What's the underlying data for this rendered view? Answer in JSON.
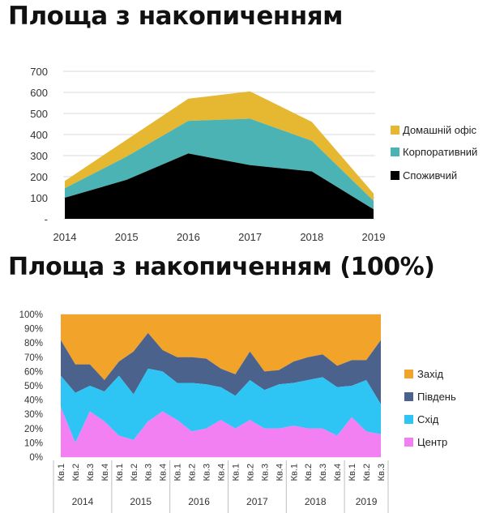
{
  "chart_data": [
    {
      "type": "area",
      "stacked": true,
      "title": "Площа з накопиченням",
      "x": [
        "2014",
        "2015",
        "2016",
        "2017",
        "2018",
        "2019"
      ],
      "series": [
        {
          "name": "Споживчий",
          "values": [
            100,
            185,
            310,
            255,
            225,
            45
          ],
          "color": "#000000"
        },
        {
          "name": "Корпоративний",
          "values": [
            45,
            110,
            155,
            220,
            145,
            40
          ],
          "color": "#4bb3b3"
        },
        {
          "name": "Домашній офіс",
          "values": [
            35,
            80,
            105,
            130,
            90,
            35
          ],
          "color": "#e6b832"
        }
      ],
      "y_ticks": [
        "-",
        "100",
        "200",
        "300",
        "400",
        "500",
        "600",
        "700"
      ],
      "ylim": [
        0,
        700
      ],
      "grid": true,
      "legend": "right"
    },
    {
      "type": "area",
      "stacked": true,
      "normalized": true,
      "title": "Площа з накопиченням (100%)",
      "x": [
        "Кв.1",
        "Кв.2",
        "Кв.3",
        "Кв.4",
        "Кв.1",
        "Кв.2",
        "Кв.3",
        "Кв.4",
        "Кв.1",
        "Кв.2",
        "Кв.3",
        "Кв.4",
        "Кв.1",
        "Кв.2",
        "Кв.3",
        "Кв.4",
        "Кв.1",
        "Кв.2",
        "Кв.3",
        "Кв.4",
        "Кв.1",
        "Кв.2",
        "Кв.3"
      ],
      "years": [
        {
          "label": "2014",
          "quarters": 4
        },
        {
          "label": "2015",
          "quarters": 4
        },
        {
          "label": "2016",
          "quarters": 4
        },
        {
          "label": "2017",
          "quarters": 4
        },
        {
          "label": "2018",
          "quarters": 4
        },
        {
          "label": "2019",
          "quarters": 3
        }
      ],
      "series": [
        {
          "name": "Центр",
          "values": [
            35,
            10,
            32,
            25,
            15,
            12,
            25,
            32,
            26,
            18,
            20,
            26,
            20,
            26,
            20,
            20,
            22,
            20,
            20,
            15,
            28,
            18,
            16
          ],
          "color": "#f280f2"
        },
        {
          "name": "Схід",
          "values": [
            22,
            35,
            18,
            21,
            42,
            32,
            37,
            28,
            26,
            34,
            31,
            23,
            23,
            28,
            27,
            31,
            30,
            34,
            36,
            34,
            22,
            36,
            21
          ],
          "color": "#2ec5f5"
        },
        {
          "name": "Південь",
          "values": [
            25,
            20,
            15,
            8,
            10,
            30,
            25,
            15,
            18,
            18,
            18,
            13,
            15,
            20,
            13,
            10,
            15,
            16,
            16,
            15,
            18,
            14,
            45
          ],
          "color": "#4a628c"
        },
        {
          "name": "Захід",
          "values": [
            18,
            35,
            35,
            46,
            33,
            26,
            13,
            25,
            30,
            30,
            31,
            38,
            42,
            26,
            40,
            39,
            33,
            30,
            28,
            36,
            32,
            32,
            18
          ],
          "color": "#f2a32a"
        }
      ],
      "y_ticks": [
        "0%",
        "10%",
        "20%",
        "30%",
        "40%",
        "50%",
        "60%",
        "70%",
        "80%",
        "90%",
        "100%"
      ],
      "ylim": [
        0,
        100
      ],
      "grid": true,
      "legend": "right"
    }
  ]
}
